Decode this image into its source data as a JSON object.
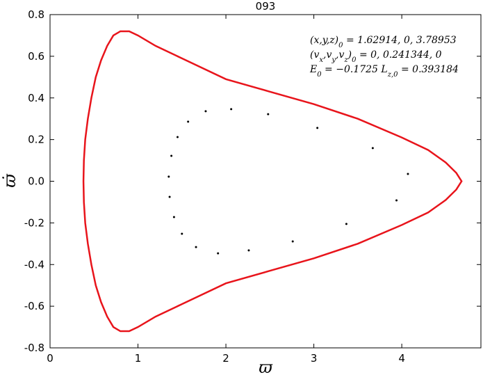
{
  "chart_data": {
    "type": "line",
    "title": "093",
    "xlabel": "ϖ",
    "ylabel": "ϖ̇",
    "xlim": [
      0,
      4.9
    ],
    "ylim": [
      -0.8,
      0.8
    ],
    "xticks": [
      0,
      1,
      2,
      3,
      4
    ],
    "yticks": [
      -0.8,
      -0.6,
      -0.4,
      -0.2,
      {
        "value": 0,
        "label": "0.0"
      },
      0.2,
      0.4,
      0.6,
      0.8
    ],
    "grid": false,
    "series": [
      {
        "type": "line",
        "color": "#e8141b",
        "x": [
          0.38,
          0.385,
          0.4,
          0.43,
          0.47,
          0.52,
          0.58,
          0.65,
          0.72,
          0.8,
          0.9,
          1.0,
          1.2,
          1.5,
          2.0,
          2.5,
          3.0,
          3.5,
          4.0,
          4.3,
          4.5,
          4.62,
          4.68,
          4.62,
          4.5,
          4.3,
          4.0,
          3.5,
          3.0,
          2.5,
          2.0,
          1.5,
          1.2,
          1.0,
          0.9,
          0.8,
          0.72,
          0.65,
          0.58,
          0.52,
          0.47,
          0.43,
          0.4,
          0.385
        ],
        "values": [
          0,
          0.1,
          0.2,
          0.3,
          0.4,
          0.5,
          0.58,
          0.65,
          0.7,
          0.72,
          0.72,
          0.7,
          0.65,
          0.59,
          0.49,
          0.43,
          0.37,
          0.3,
          0.21,
          0.15,
          0.09,
          0.04,
          0,
          -0.04,
          -0.09,
          -0.15,
          -0.21,
          -0.3,
          -0.37,
          -0.43,
          -0.49,
          -0.59,
          -0.65,
          -0.7,
          -0.72,
          -0.72,
          -0.7,
          -0.65,
          -0.58,
          -0.5,
          -0.4,
          -0.3,
          -0.2,
          -0.1
        ]
      },
      {
        "type": "scatter",
        "color": "#000000",
        "x": [
          1.77,
          2.06,
          2.48,
          3.04,
          3.67,
          4.07,
          3.94,
          3.37,
          2.76,
          2.26,
          1.91,
          1.66,
          1.5,
          1.41,
          1.36,
          1.35,
          1.38,
          1.45,
          1.57
        ],
        "values": [
          0.336,
          0.346,
          0.322,
          0.256,
          0.159,
          0.035,
          -0.092,
          -0.205,
          -0.289,
          -0.332,
          -0.346,
          -0.316,
          -0.252,
          -0.172,
          -0.075,
          0.022,
          0.122,
          0.212,
          0.286
        ]
      }
    ],
    "annotations": [
      [
        {
          "text": "(x,y,z)"
        },
        {
          "text": "0",
          "sub": true
        },
        {
          "text": " = 1.62914, 0, 3.78953"
        }
      ],
      [
        {
          "text": "(v"
        },
        {
          "text": "x",
          "sub": true
        },
        {
          "text": ",v"
        },
        {
          "text": "y",
          "sub": true
        },
        {
          "text": ",v"
        },
        {
          "text": "z",
          "sub": true
        },
        {
          "text": ")"
        },
        {
          "text": "0",
          "sub": true
        },
        {
          "text": " = 0, 0.241344, 0"
        }
      ],
      [
        {
          "text": "E"
        },
        {
          "text": "0",
          "sub": true
        },
        {
          "text": " = −0.1725  L"
        },
        {
          "text": "z,0",
          "sub": true
        },
        {
          "text": " = 0.393184"
        }
      ]
    ]
  }
}
